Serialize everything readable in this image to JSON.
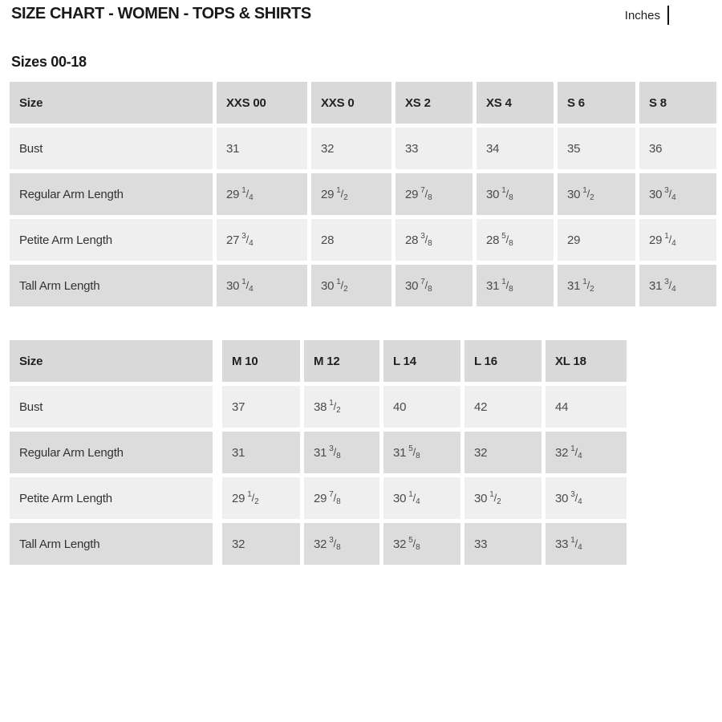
{
  "page": {
    "title": "SIZE CHART - WOMEN - TOPS & SHIRTS",
    "unit_label": "Inches",
    "subtitle": "Sizes 00-18"
  },
  "colors": {
    "header_bg": "#d9d9d9",
    "row_light_bg": "#efefef",
    "row_dark_bg": "#dcdcdc",
    "title_text": "#191919",
    "value_text": "#4b4b4b"
  },
  "table1": {
    "header": [
      "Size",
      "XXS 00",
      "XXS 0",
      "XS 2",
      "XS 4",
      "S 6",
      "S 8"
    ],
    "rows": [
      {
        "label": "Bust",
        "values": [
          "31",
          "32",
          "33",
          "34",
          "35",
          "36"
        ]
      },
      {
        "label": "Regular Arm Length",
        "values": [
          "29 1/4",
          "29 1/2",
          "29 7/8",
          "30 1/8",
          "30 1/2",
          "30 3/4"
        ]
      },
      {
        "label": "Petite Arm Length",
        "values": [
          "27 3/4",
          "28",
          "28 3/8",
          "28 5/8",
          "29",
          "29 1/4"
        ]
      },
      {
        "label": "Tall Arm Length",
        "values": [
          "30 1/4",
          "30 1/2",
          "30 7/8",
          "31 1/8",
          "31 1/2",
          "31 3/4"
        ]
      }
    ]
  },
  "table2": {
    "header": [
      "Size",
      "M 10",
      "M 12",
      "L 14",
      "L 16",
      "XL 18"
    ],
    "rows": [
      {
        "label": "Bust",
        "values": [
          "37",
          "38 1/2",
          "40",
          "42",
          "44"
        ]
      },
      {
        "label": "Regular Arm Length",
        "values": [
          "31",
          "31 3/8",
          "31 5/8",
          "32",
          "32 1/4"
        ]
      },
      {
        "label": "Petite Arm Length",
        "values": [
          "29 1/2",
          "29 7/8",
          "30 1/4",
          "30 1/2",
          "30 3/4"
        ]
      },
      {
        "label": "Tall Arm Length",
        "values": [
          "32",
          "32 3/8",
          "32 5/8",
          "33",
          "33 1/4"
        ]
      }
    ]
  }
}
